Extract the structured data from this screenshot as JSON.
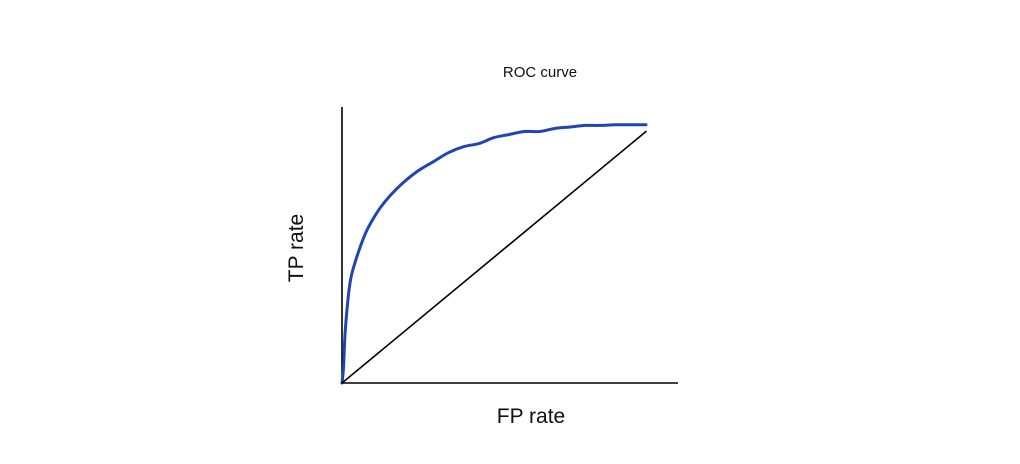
{
  "chart_data": {
    "type": "line",
    "title": "ROC curve",
    "xlabel": "FP rate",
    "ylabel": "TP rate",
    "xlim": [
      0,
      1
    ],
    "ylim": [
      0,
      1
    ],
    "grid": false,
    "legend": "none",
    "series": [
      {
        "role": "roc-curve",
        "color": "#1f45b5",
        "x": [
          0,
          0.005,
          0.01,
          0.02,
          0.03,
          0.05,
          0.08,
          0.12,
          0.16,
          0.2,
          0.25,
          0.3,
          0.35,
          0.4,
          0.45,
          0.5,
          0.55,
          0.6,
          0.65,
          0.7,
          0.75,
          0.8,
          0.85,
          0.9,
          0.95,
          1
        ],
        "y": [
          0,
          0.05,
          0.16,
          0.28,
          0.35,
          0.42,
          0.5,
          0.57,
          0.62,
          0.66,
          0.7,
          0.73,
          0.76,
          0.78,
          0.79,
          0.81,
          0.82,
          0.83,
          0.83,
          0.84,
          0.845,
          0.85,
          0.85,
          0.852,
          0.852,
          0.852
        ]
      },
      {
        "role": "random-classifier-diagonal",
        "color": "#000000",
        "x": [
          0,
          1
        ],
        "y": [
          0,
          0.83
        ]
      }
    ]
  }
}
